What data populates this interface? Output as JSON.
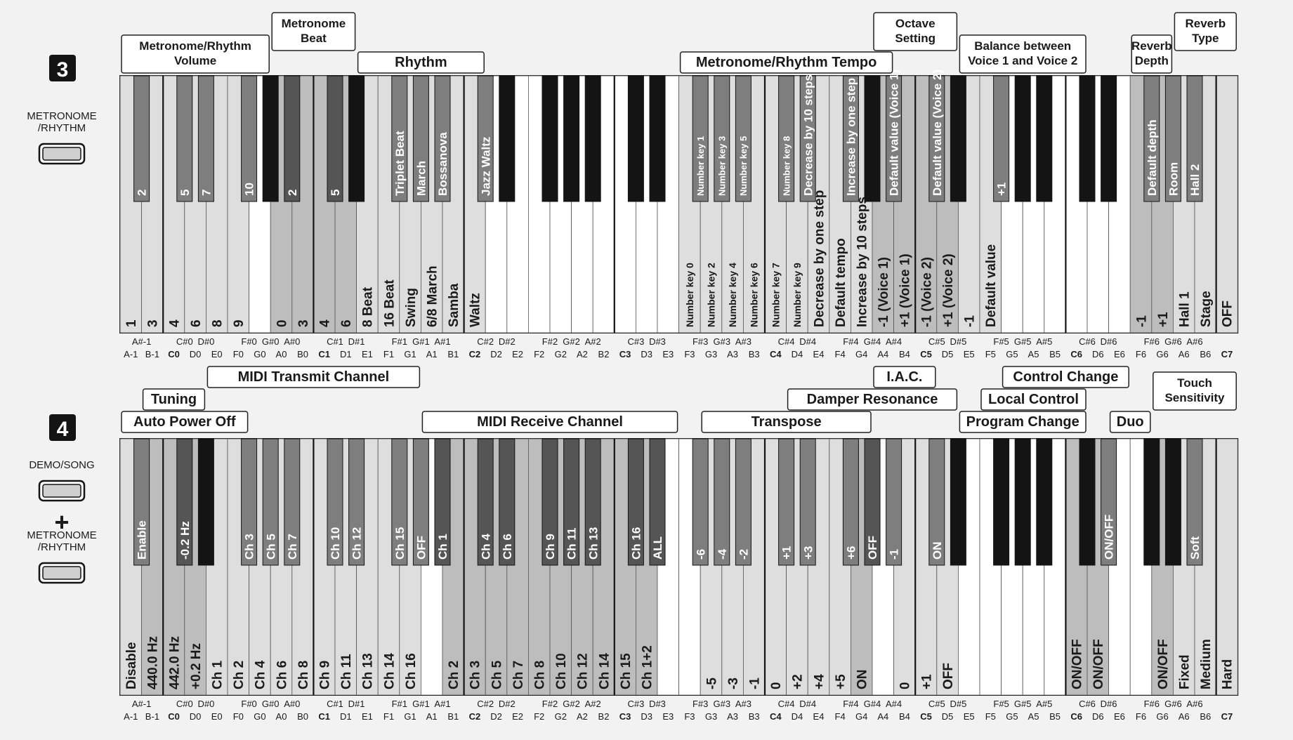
{
  "colors": {
    "bg": "#f2f2f2",
    "white": "#ffffff",
    "black": "#141414",
    "light": "#dedede",
    "mid": "#bdbdbd",
    "dark": "#7e7e7e",
    "darker": "#555555",
    "text": "#1a1a1a",
    "labelText": "#ffffff"
  },
  "notes": {
    "white": [
      "A-1",
      "B-1",
      "C0",
      "D0",
      "E0",
      "F0",
      "G0",
      "A0",
      "B0",
      "C1",
      "D1",
      "E1",
      "F1",
      "G1",
      "A1",
      "B1",
      "C2",
      "D2",
      "E2",
      "F2",
      "G2",
      "A2",
      "B2",
      "C3",
      "D3",
      "E3",
      "F3",
      "G3",
      "A3",
      "B3",
      "C4",
      "D4",
      "E4",
      "F4",
      "G4",
      "A4",
      "B4",
      "C5",
      "D5",
      "E5",
      "F5",
      "G5",
      "A5",
      "B5",
      "C6",
      "D6",
      "E6",
      "F6",
      "G6",
      "A6",
      "B6",
      "C7"
    ],
    "black": [
      {
        "after": 0,
        "name": "A#-1"
      },
      {
        "after": 2,
        "name": "C#0"
      },
      {
        "after": 3,
        "name": "D#0"
      },
      {
        "after": 5,
        "name": "F#0"
      },
      {
        "after": 6,
        "name": "G#0"
      },
      {
        "after": 7,
        "name": "A#0"
      },
      {
        "after": 9,
        "name": "C#1"
      },
      {
        "after": 10,
        "name": "D#1"
      },
      {
        "after": 12,
        "name": "F#1"
      },
      {
        "after": 13,
        "name": "G#1"
      },
      {
        "after": 14,
        "name": "A#1"
      },
      {
        "after": 16,
        "name": "C#2"
      },
      {
        "after": 17,
        "name": "D#2"
      },
      {
        "after": 19,
        "name": "F#2"
      },
      {
        "after": 20,
        "name": "G#2"
      },
      {
        "after": 21,
        "name": "A#2"
      },
      {
        "after": 23,
        "name": "C#3"
      },
      {
        "after": 24,
        "name": "D#3"
      },
      {
        "after": 26,
        "name": "F#3"
      },
      {
        "after": 27,
        "name": "G#3"
      },
      {
        "after": 28,
        "name": "A#3"
      },
      {
        "after": 30,
        "name": "C#4"
      },
      {
        "after": 31,
        "name": "D#4"
      },
      {
        "after": 33,
        "name": "F#4"
      },
      {
        "after": 34,
        "name": "G#4"
      },
      {
        "after": 35,
        "name": "A#4"
      },
      {
        "after": 37,
        "name": "C#5"
      },
      {
        "after": 38,
        "name": "D#5"
      },
      {
        "after": 40,
        "name": "F#5"
      },
      {
        "after": 41,
        "name": "G#5"
      },
      {
        "after": 42,
        "name": "A#5"
      },
      {
        "after": 44,
        "name": "C#6"
      },
      {
        "after": 45,
        "name": "D#6"
      },
      {
        "after": 47,
        "name": "F#6"
      },
      {
        "after": 48,
        "name": "G#6"
      },
      {
        "after": 49,
        "name": "A#6"
      }
    ]
  },
  "sections": [
    {
      "number": "3",
      "buttons": [
        {
          "label": "METRONOME\n/RHYTHM"
        }
      ],
      "plus": "",
      "headers": [
        {
          "text": "Metronome/Rhythm\nVolume",
          "from": 0,
          "to": 6
        },
        {
          "text": "Metronome\nBeat",
          "from": 7,
          "to": 10
        },
        {
          "text": "Rhythm",
          "from": 11,
          "to": 16
        },
        {
          "text": "Metronome/Rhythm Tempo",
          "from": 26,
          "to": 35
        },
        {
          "text": "Octave\nSetting",
          "from": 35,
          "to": 38
        },
        {
          "text": "Balance between\nVoice 1 and Voice 2",
          "from": 39,
          "to": 44
        },
        {
          "text": "Reverb\nDepth",
          "from": 47,
          "to": 48
        },
        {
          "text": "Reverb\nType",
          "from": 49,
          "to": 51
        }
      ],
      "white": [
        {
          "s": "light",
          "t": "1"
        },
        {
          "s": "light",
          "t": "3"
        },
        {
          "s": "light",
          "t": "4"
        },
        {
          "s": "light",
          "t": "6"
        },
        {
          "s": "light",
          "t": "8"
        },
        {
          "s": "light",
          "t": "9"
        },
        {
          "s": "white",
          "t": ""
        },
        {
          "s": "mid",
          "t": "0"
        },
        {
          "s": "mid",
          "t": "3"
        },
        {
          "s": "mid",
          "t": "4"
        },
        {
          "s": "mid",
          "t": "6"
        },
        {
          "s": "light",
          "t": "8 Beat"
        },
        {
          "s": "light",
          "t": "16 Beat"
        },
        {
          "s": "light",
          "t": "Swing"
        },
        {
          "s": "light",
          "t": "6/8 March"
        },
        {
          "s": "light",
          "t": "Samba"
        },
        {
          "s": "light",
          "t": "Waltz"
        },
        {
          "s": "white",
          "t": ""
        },
        {
          "s": "white",
          "t": ""
        },
        {
          "s": "white",
          "t": ""
        },
        {
          "s": "white",
          "t": ""
        },
        {
          "s": "white",
          "t": ""
        },
        {
          "s": "white",
          "t": ""
        },
        {
          "s": "white",
          "t": ""
        },
        {
          "s": "white",
          "t": ""
        },
        {
          "s": "white",
          "t": ""
        },
        {
          "s": "light",
          "t": "Number key 0",
          "sm": 1
        },
        {
          "s": "light",
          "t": "Number key 2",
          "sm": 1
        },
        {
          "s": "light",
          "t": "Number key 4",
          "sm": 1
        },
        {
          "s": "light",
          "t": "Number key 6",
          "sm": 1
        },
        {
          "s": "light",
          "t": "Number key 7",
          "sm": 1
        },
        {
          "s": "light",
          "t": "Number key 9",
          "sm": 1
        },
        {
          "s": "light",
          "t": "Decrease by one step"
        },
        {
          "s": "light",
          "t": "Default tempo"
        },
        {
          "s": "light",
          "t": "Increase by 10 steps"
        },
        {
          "s": "mid",
          "t": "-1 (Voice 1)"
        },
        {
          "s": "mid",
          "t": "+1 (Voice 1)"
        },
        {
          "s": "mid",
          "t": "-1 (Voice 2)"
        },
        {
          "s": "mid",
          "t": "+1 (Voice 2)"
        },
        {
          "s": "light",
          "t": "-1"
        },
        {
          "s": "light",
          "t": "Default value"
        },
        {
          "s": "white",
          "t": ""
        },
        {
          "s": "white",
          "t": ""
        },
        {
          "s": "white",
          "t": ""
        },
        {
          "s": "white",
          "t": ""
        },
        {
          "s": "white",
          "t": ""
        },
        {
          "s": "white",
          "t": ""
        },
        {
          "s": "mid",
          "t": "-1"
        },
        {
          "s": "mid",
          "t": "+1"
        },
        {
          "s": "light",
          "t": "Hall 1"
        },
        {
          "s": "light",
          "t": "Stage"
        },
        {
          "s": "light",
          "t": "OFF"
        }
      ],
      "black": [
        {
          "s": "dark",
          "t": "2"
        },
        {
          "s": "dark",
          "t": "5"
        },
        {
          "s": "dark",
          "t": "7"
        },
        {
          "s": "dark",
          "t": "10"
        },
        {
          "s": "black",
          "t": ""
        },
        {
          "s": "darker",
          "t": "2"
        },
        {
          "s": "darker",
          "t": "5"
        },
        {
          "s": "black",
          "t": ""
        },
        {
          "s": "dark",
          "t": "Triplet Beat"
        },
        {
          "s": "dark",
          "t": "March"
        },
        {
          "s": "dark",
          "t": "Bossanova"
        },
        {
          "s": "dark",
          "t": "Jazz Waltz"
        },
        {
          "s": "black",
          "t": ""
        },
        {
          "s": "black",
          "t": ""
        },
        {
          "s": "black",
          "t": ""
        },
        {
          "s": "black",
          "t": ""
        },
        {
          "s": "black",
          "t": ""
        },
        {
          "s": "black",
          "t": ""
        },
        {
          "s": "dark",
          "t": "Number key 1",
          "sm": 1
        },
        {
          "s": "dark",
          "t": "Number key 3",
          "sm": 1
        },
        {
          "s": "dark",
          "t": "Number key 5",
          "sm": 1
        },
        {
          "s": "dark",
          "t": "Number key 8",
          "sm": 1
        },
        {
          "s": "dark",
          "t": "Decrease by 10 steps"
        },
        {
          "s": "dark",
          "t": "Increase by one step"
        },
        {
          "s": "black",
          "t": ""
        },
        {
          "s": "dark",
          "t": "Default value (Voice 1)"
        },
        {
          "s": "dark",
          "t": "Default value (Voice 2)"
        },
        {
          "s": "black",
          "t": ""
        },
        {
          "s": "dark",
          "t": "+1"
        },
        {
          "s": "black",
          "t": ""
        },
        {
          "s": "black",
          "t": ""
        },
        {
          "s": "black",
          "t": ""
        },
        {
          "s": "black",
          "t": ""
        },
        {
          "s": "dark",
          "t": "Default depth"
        },
        {
          "s": "dark",
          "t": "Room"
        },
        {
          "s": "dark",
          "t": "Hall 2"
        }
      ]
    },
    {
      "number": "4",
      "buttons": [
        {
          "label": "DEMO/SONG"
        },
        {
          "label": "METRONOME\n/RHYTHM"
        }
      ],
      "plus": "+",
      "headers": [
        {
          "text": "Auto Power Off",
          "from": 0,
          "to": 5
        },
        {
          "text": "Tuning",
          "from": 1,
          "to": 3
        },
        {
          "text": "MIDI Transmit Channel",
          "from": 4,
          "to": 13
        },
        {
          "text": "MIDI Receive Channel",
          "from": 14,
          "to": 25
        },
        {
          "text": "Transpose",
          "from": 27,
          "to": 34
        },
        {
          "text": "Damper Resonance",
          "from": 31,
          "to": 38
        },
        {
          "text": "I.A.C.",
          "from": 35,
          "to": 37
        },
        {
          "text": "Program Change",
          "from": 39,
          "to": 44
        },
        {
          "text": "Local Control",
          "from": 40,
          "to": 44
        },
        {
          "text": "Control Change",
          "from": 41,
          "to": 46
        },
        {
          "text": "Duo",
          "from": 46,
          "to": 47
        },
        {
          "text": "Touch\nSensitivity",
          "from": 48,
          "to": 51
        }
      ],
      "white": [
        {
          "s": "light",
          "t": "Disable"
        },
        {
          "s": "mid",
          "t": "440.0 Hz"
        },
        {
          "s": "mid",
          "t": "442.0 Hz"
        },
        {
          "s": "mid",
          "t": "+0.2 Hz"
        },
        {
          "s": "light",
          "t": "Ch 1"
        },
        {
          "s": "light",
          "t": "Ch 2"
        },
        {
          "s": "light",
          "t": "Ch 4"
        },
        {
          "s": "light",
          "t": "Ch 6"
        },
        {
          "s": "light",
          "t": "Ch 8"
        },
        {
          "s": "light",
          "t": "Ch 9"
        },
        {
          "s": "light",
          "t": "Ch 11"
        },
        {
          "s": "light",
          "t": "Ch 13"
        },
        {
          "s": "light",
          "t": "Ch 14"
        },
        {
          "s": "light",
          "t": "Ch 16"
        },
        {
          "s": "white",
          "t": ""
        },
        {
          "s": "mid",
          "t": "Ch 2"
        },
        {
          "s": "mid",
          "t": "Ch 3"
        },
        {
          "s": "mid",
          "t": "Ch 5"
        },
        {
          "s": "mid",
          "t": "Ch 7"
        },
        {
          "s": "mid",
          "t": "Ch 8"
        },
        {
          "s": "mid",
          "t": "Ch 10"
        },
        {
          "s": "mid",
          "t": "Ch 12"
        },
        {
          "s": "mid",
          "t": "Ch 14"
        },
        {
          "s": "mid",
          "t": "Ch 15"
        },
        {
          "s": "mid",
          "t": "Ch 1+2"
        },
        {
          "s": "white",
          "t": ""
        },
        {
          "s": "white",
          "t": ""
        },
        {
          "s": "light",
          "t": "-5"
        },
        {
          "s": "light",
          "t": "-3"
        },
        {
          "s": "light",
          "t": "-1"
        },
        {
          "s": "light",
          "t": "0"
        },
        {
          "s": "light",
          "t": "+2"
        },
        {
          "s": "light",
          "t": "+4"
        },
        {
          "s": "light",
          "t": "+5"
        },
        {
          "s": "mid",
          "t": "ON"
        },
        {
          "s": "white",
          "t": ""
        },
        {
          "s": "light",
          "t": "0"
        },
        {
          "s": "light",
          "t": "+1"
        },
        {
          "s": "light",
          "t": "OFF"
        },
        {
          "s": "white",
          "t": ""
        },
        {
          "s": "white",
          "t": ""
        },
        {
          "s": "white",
          "t": ""
        },
        {
          "s": "white",
          "t": ""
        },
        {
          "s": "white",
          "t": ""
        },
        {
          "s": "mid",
          "t": "ON/OFF"
        },
        {
          "s": "mid",
          "t": "ON/OFF"
        },
        {
          "s": "white",
          "t": ""
        },
        {
          "s": "white",
          "t": ""
        },
        {
          "s": "mid",
          "t": "ON/OFF"
        },
        {
          "s": "light",
          "t": "Fixed"
        },
        {
          "s": "light",
          "t": "Medium"
        },
        {
          "s": "light",
          "t": "Hard"
        }
      ],
      "black": [
        {
          "s": "dark",
          "t": "Enable"
        },
        {
          "s": "darker",
          "t": "-0.2 Hz"
        },
        {
          "s": "black",
          "t": ""
        },
        {
          "s": "dark",
          "t": "Ch 3"
        },
        {
          "s": "dark",
          "t": "Ch 5"
        },
        {
          "s": "dark",
          "t": "Ch 7"
        },
        {
          "s": "dark",
          "t": "Ch 10"
        },
        {
          "s": "dark",
          "t": "Ch 12"
        },
        {
          "s": "dark",
          "t": "Ch 15"
        },
        {
          "s": "dark",
          "t": "OFF"
        },
        {
          "s": "darker",
          "t": "Ch 1"
        },
        {
          "s": "darker",
          "t": "Ch 4"
        },
        {
          "s": "darker",
          "t": "Ch 6"
        },
        {
          "s": "darker",
          "t": "Ch 9"
        },
        {
          "s": "darker",
          "t": "Ch 11"
        },
        {
          "s": "darker",
          "t": "Ch 13"
        },
        {
          "s": "darker",
          "t": "Ch 16"
        },
        {
          "s": "darker",
          "t": "ALL"
        },
        {
          "s": "dark",
          "t": "-6"
        },
        {
          "s": "dark",
          "t": "-4"
        },
        {
          "s": "dark",
          "t": "-2"
        },
        {
          "s": "dark",
          "t": "+1"
        },
        {
          "s": "dark",
          "t": "+3"
        },
        {
          "s": "dark",
          "t": "+6"
        },
        {
          "s": "darker",
          "t": "OFF"
        },
        {
          "s": "dark",
          "t": "-1"
        },
        {
          "s": "dark",
          "t": "ON"
        },
        {
          "s": "black",
          "t": ""
        },
        {
          "s": "black",
          "t": ""
        },
        {
          "s": "black",
          "t": ""
        },
        {
          "s": "black",
          "t": ""
        },
        {
          "s": "black",
          "t": ""
        },
        {
          "s": "dark",
          "t": "ON/OFF"
        },
        {
          "s": "black",
          "t": ""
        },
        {
          "s": "black",
          "t": ""
        },
        {
          "s": "dark",
          "t": "Soft"
        }
      ]
    }
  ]
}
